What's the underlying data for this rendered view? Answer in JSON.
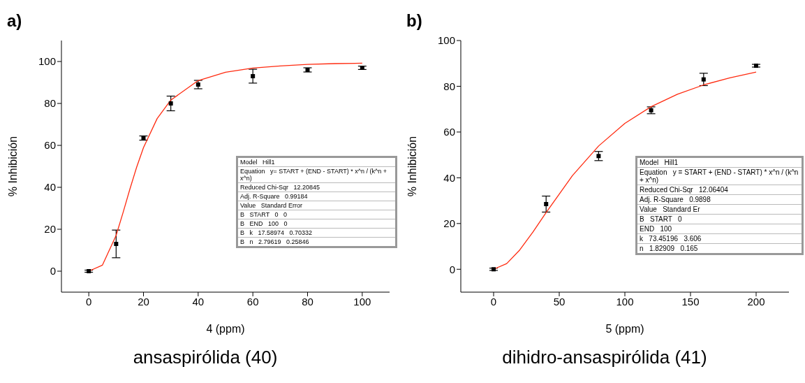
{
  "chart_data": [
    {
      "type": "scatter",
      "title": "a)",
      "xlabel": "4 (ppm)",
      "ylabel": "% Inhibición",
      "xlim": [
        -10,
        110
      ],
      "xticks": [
        0,
        20,
        40,
        60,
        80,
        100
      ],
      "ylim": [
        -10,
        110
      ],
      "yticks": [
        0,
        20,
        40,
        60,
        80,
        100
      ],
      "series": [
        {
          "marker": "square",
          "color": "#000000",
          "x": [
            0,
            10,
            20,
            30,
            40,
            60,
            80,
            100
          ],
          "values": [
            0,
            13,
            63.5,
            80,
            89,
            93,
            96,
            97
          ],
          "errors": [
            0.5,
            6.6,
            1,
            3.5,
            2,
            3.3,
            1,
            0.8
          ]
        },
        {
          "type": "line",
          "marker": "none",
          "color": "#ff2a0f",
          "x": [
            0,
            5,
            10,
            12.5,
            15,
            17.5,
            20,
            25,
            30,
            40,
            50,
            60,
            70,
            80,
            90,
            100
          ],
          "values": [
            0,
            2.9,
            17.1,
            27.8,
            39.0,
            49.6,
            58.9,
            72.8,
            81.6,
            90.9,
            94.9,
            96.9,
            97.9,
            98.6,
            99.0,
            99.2
          ]
        }
      ],
      "annotations": [
        "ansaspirólida (40)",
        "Model   Hill1",
        "Equation   y= START + (END - START) * x^n / (k^n + x^n)",
        "Reduced Chi-Sqr   12.20845",
        "Adj. R-Square   0.99184",
        "Value   Standard Error",
        "B   START   0   0",
        "B   END   100   0",
        "B   k   17.58974   0.70332",
        "B   n   2.79619   0.25846"
      ]
    },
    {
      "type": "scatter",
      "title": "b)",
      "xlabel": "5 (ppm)",
      "ylabel": "% Inhibición",
      "xlim": [
        -25,
        225
      ],
      "xticks": [
        0,
        50,
        100,
        150,
        200
      ],
      "ylim": [
        -10,
        100
      ],
      "yticks": [
        0,
        20,
        40,
        60,
        80,
        100
      ],
      "series": [
        {
          "marker": "square",
          "color": "#000000",
          "x": [
            0,
            40,
            80,
            120,
            160,
            200
          ],
          "values": [
            0,
            28.5,
            49.5,
            69.5,
            83,
            89
          ],
          "errors": [
            0.5,
            3.5,
            2,
            1.5,
            2.7,
            0.6
          ]
        },
        {
          "type": "line",
          "marker": "none",
          "color": "#ff2a0f",
          "x": [
            0,
            10,
            20,
            30,
            40,
            60,
            80,
            100,
            120,
            140,
            160,
            180,
            200
          ],
          "values": [
            0,
            2.5,
            8.5,
            16.3,
            24.8,
            40.9,
            53.9,
            63.8,
            71.1,
            76.5,
            80.6,
            83.7,
            86.2
          ]
        }
      ],
      "annotations": [
        "dihidro-ansaspirólida (41)",
        "Model   Hill1",
        "Equation   y = START + (END - START) * x^n / (k^n + x^n)",
        "Reduced Chi-Sqr   12.06404",
        "Adj. R-Square   0.9898",
        "Value   Standard Er",
        "B   START   0",
        "END   100",
        "k   73.45196   3.606",
        "n   1.82909   0.165"
      ]
    }
  ]
}
